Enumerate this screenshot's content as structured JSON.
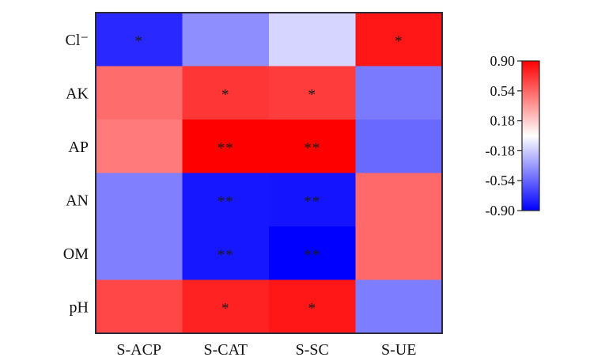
{
  "chart_data": {
    "type": "heatmap",
    "title": "",
    "xlabel": "",
    "ylabel": "",
    "columns": [
      "S-ACP",
      "S-CAT",
      "S-SC",
      "S-UE"
    ],
    "rows": [
      "Cl⁻",
      "AK",
      "AP",
      "AN",
      "OM",
      "pH"
    ],
    "values": [
      [
        -0.76,
        -0.4,
        -0.15,
        0.82
      ],
      [
        0.52,
        0.71,
        0.69,
        -0.47
      ],
      [
        0.47,
        0.9,
        0.9,
        -0.53
      ],
      [
        -0.45,
        -0.82,
        -0.83,
        0.53
      ],
      [
        -0.45,
        -0.82,
        -0.9,
        0.53
      ],
      [
        0.65,
        0.78,
        0.82,
        -0.46
      ]
    ],
    "significance": [
      [
        "*",
        "",
        "",
        "*"
      ],
      [
        "",
        "*",
        "*",
        ""
      ],
      [
        "",
        "**",
        "**",
        ""
      ],
      [
        "",
        "**",
        "**",
        ""
      ],
      [
        "",
        "**",
        "**",
        ""
      ],
      [
        "",
        "*",
        "*",
        ""
      ]
    ],
    "colorbar": {
      "range": [
        -0.9,
        0.9
      ],
      "ticks": [
        0.9,
        0.54,
        0.18,
        -0.18,
        -0.54,
        -0.9
      ],
      "tick_labels": [
        "0.90",
        "0.54",
        "0.18",
        "-0.18",
        "-0.54",
        "-0.90"
      ],
      "low_color": "#0000ff",
      "mid_color": "#ffffff",
      "high_color": "#ff0000",
      "placement": "right"
    }
  }
}
